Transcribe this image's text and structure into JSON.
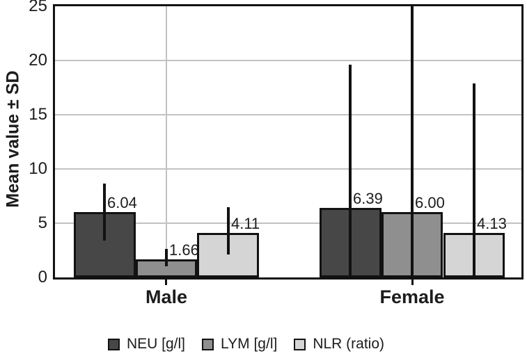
{
  "chart_data": {
    "type": "bar",
    "title": "",
    "ylabel": "Mean value ± SD",
    "ylim": [
      0,
      25
    ],
    "yticks": [
      "0",
      "5",
      "10",
      "15",
      "20",
      "25"
    ],
    "categories": [
      "Male",
      "Female"
    ],
    "series": [
      {
        "key": "neu",
        "name": "NEU [g/l]",
        "color": "#474747",
        "values": [
          6.04,
          6.39
        ],
        "display": [
          "6.04",
          "6.39"
        ],
        "error_low": [
          3.4,
          0
        ],
        "error_high": [
          8.65,
          19.6
        ]
      },
      {
        "key": "lym",
        "name": "LYM [g/l]",
        "color": "#8f8f8f",
        "values": [
          1.66,
          6.0
        ],
        "display": [
          "1.66",
          "6.00"
        ],
        "error_low": [
          1.0,
          0
        ],
        "error_high": [
          2.65,
          25
        ]
      },
      {
        "key": "nlr",
        "name": "NLR (ratio)",
        "color": "#d5d5d5",
        "values": [
          4.11,
          4.13
        ],
        "display": [
          "4.11",
          "4.13"
        ],
        "error_low": [
          2.1,
          0
        ],
        "error_high": [
          6.5,
          17.9
        ]
      }
    ],
    "error_bars": "mean ± SD, no caps, clipped at axis (0) and plot top (25)",
    "grid": {
      "horizontal": true,
      "vertical_at_category_centers": true,
      "color": "#c2c2c2"
    },
    "axis_color": "#121212",
    "text_color": "#1c1c1c",
    "legend_position": "bottom"
  }
}
